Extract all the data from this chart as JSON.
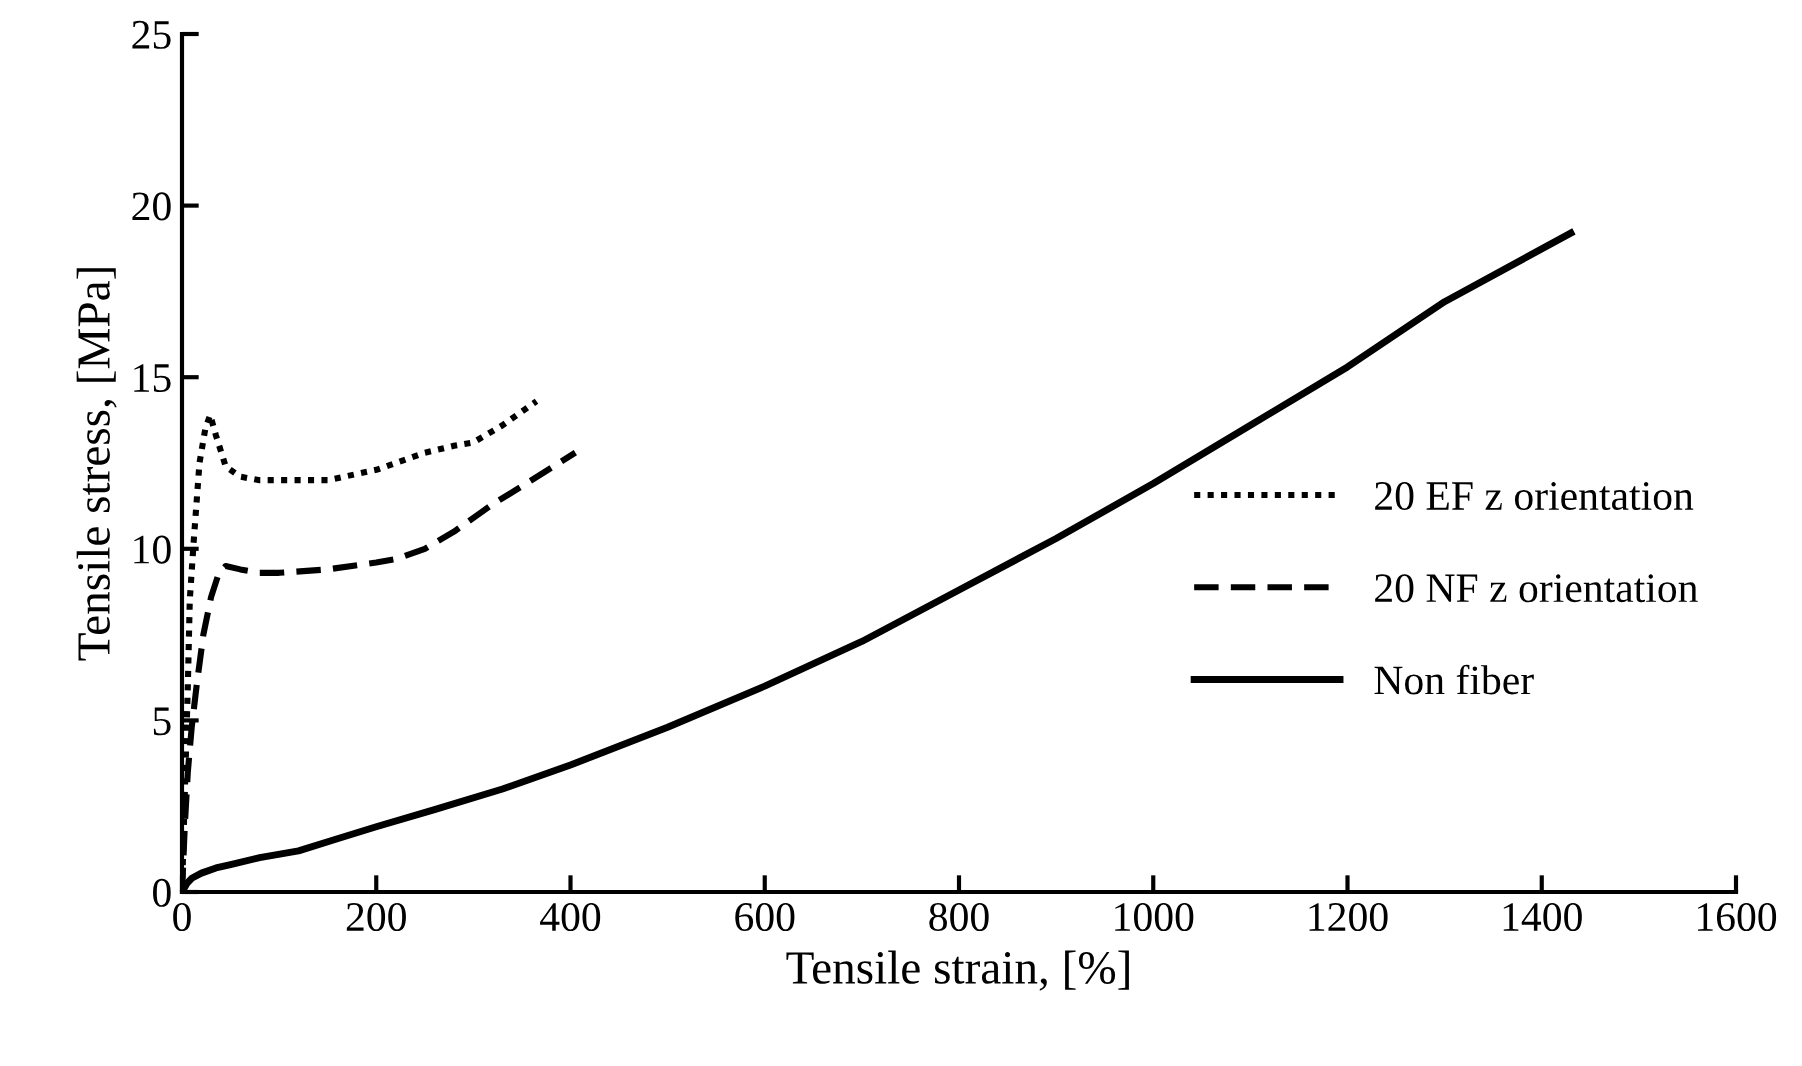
{
  "chart_data": {
    "type": "line",
    "xlabel": "Tensile strain, [%]",
    "ylabel": "Tensile stress, [MPa]",
    "xlim": [
      0,
      1600
    ],
    "ylim": [
      0,
      25
    ],
    "xticks": [
      0,
      200,
      400,
      600,
      800,
      1000,
      1200,
      1400,
      1600
    ],
    "yticks": [
      0,
      5,
      10,
      15,
      20,
      25
    ],
    "grid": false,
    "legend": "right",
    "marker": "none",
    "series": [
      {
        "name": "20 EF z orientation",
        "color": "#000000",
        "line_style": "dotted",
        "x": [
          0,
          3,
          6,
          8,
          12,
          18,
          24,
          29,
          35,
          45,
          60,
          80,
          100,
          150,
          200,
          250,
          280,
          300,
          330,
          365
        ],
        "values": [
          0,
          3,
          6,
          8.5,
          10.2,
          12.5,
          13.5,
          13.9,
          13.3,
          12.4,
          12.1,
          12.0,
          12.0,
          12.0,
          12.3,
          12.8,
          13.0,
          13.1,
          13.6,
          14.3
        ]
      },
      {
        "name": "20 NF z orientation",
        "color": "#000000",
        "line_style": "dashed",
        "x": [
          0,
          3,
          6,
          10,
          15,
          22,
          30,
          38,
          45,
          60,
          80,
          100,
          150,
          200,
          220,
          250,
          280,
          320,
          360,
          405
        ],
        "values": [
          0,
          2,
          3.5,
          4.8,
          6,
          7.5,
          8.6,
          9.3,
          9.5,
          9.4,
          9.3,
          9.3,
          9.4,
          9.6,
          9.7,
          10.0,
          10.5,
          11.3,
          12.0,
          12.8
        ]
      },
      {
        "name": "Non fiber",
        "color": "#000000",
        "line_style": "solid",
        "x": [
          0,
          5,
          10,
          20,
          35,
          50,
          80,
          120,
          160,
          200,
          260,
          330,
          400,
          500,
          600,
          700,
          800,
          900,
          1000,
          1100,
          1200,
          1300,
          1430
        ],
        "values": [
          0,
          0.25,
          0.4,
          0.55,
          0.7,
          0.8,
          1.0,
          1.2,
          1.55,
          1.9,
          2.4,
          3.0,
          3.7,
          4.8,
          6.0,
          7.3,
          8.8,
          10.3,
          11.9,
          13.6,
          15.3,
          17.2,
          19.2
        ]
      }
    ]
  }
}
